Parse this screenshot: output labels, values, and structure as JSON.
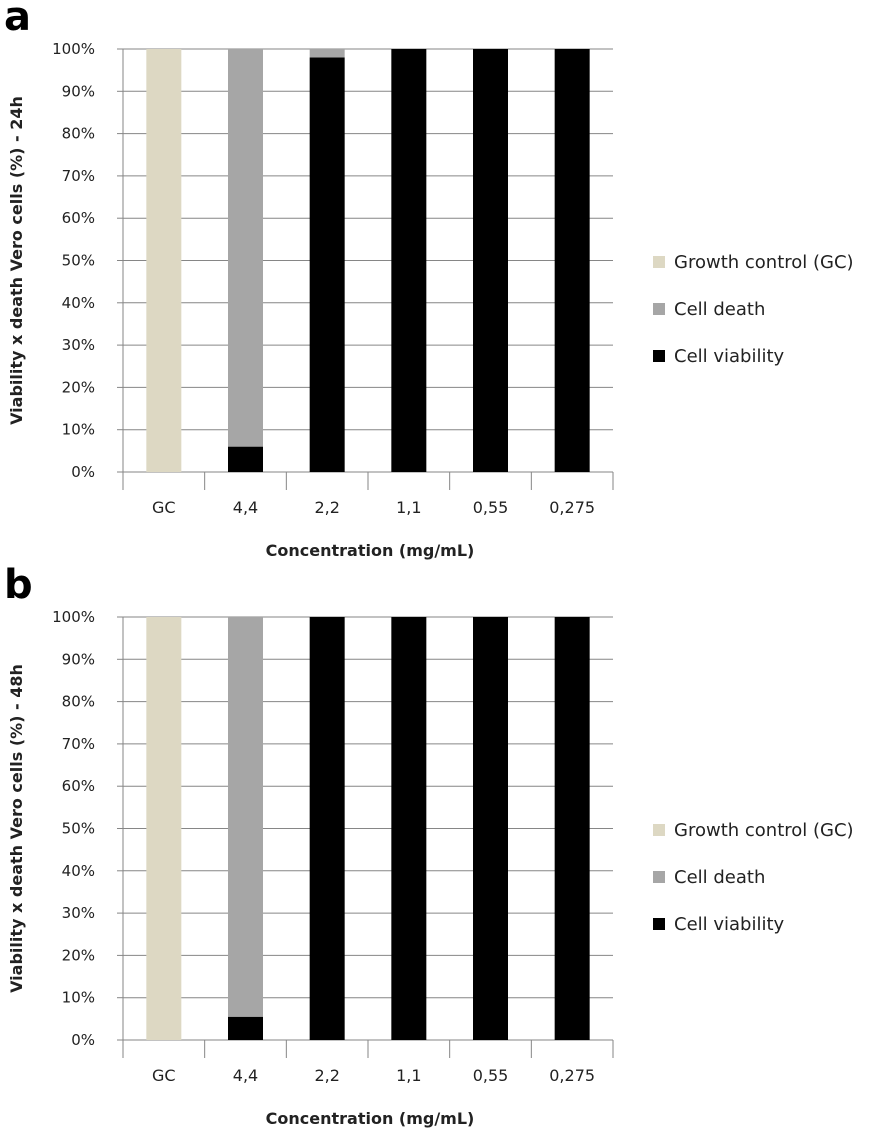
{
  "chart_data": [
    {
      "panel_label": "a",
      "type": "bar",
      "stacked": true,
      "categories": [
        "GC",
        "4,4",
        "2,2",
        "1,1",
        "0,55",
        "0,275"
      ],
      "series": [
        {
          "name": "Growth control (GC)",
          "color": "#ddd8c3",
          "values": [
            100,
            0,
            0,
            0,
            0,
            0
          ]
        },
        {
          "name": "Cell death",
          "color": "#a6a6a6",
          "values": [
            0,
            94,
            2,
            0,
            0,
            0
          ]
        },
        {
          "name": "Cell viability",
          "color": "#000000",
          "values": [
            0,
            6,
            98,
            100,
            100,
            100
          ]
        }
      ],
      "stack_order_bottom_to_top": [
        "Cell viability",
        "Cell death",
        "Growth control (GC)"
      ],
      "xlabel": "Concentration (mg/mL)",
      "ylabel": "Viability x death Vero cells (%) - 24h",
      "ylim": [
        0,
        100
      ],
      "yticks": [
        "0%",
        "10%",
        "20%",
        "30%",
        "40%",
        "50%",
        "60%",
        "70%",
        "80%",
        "90%",
        "100%"
      ],
      "grid": true,
      "legend": "right"
    },
    {
      "panel_label": "b",
      "type": "bar",
      "stacked": true,
      "categories": [
        "GC",
        "4,4",
        "2,2",
        "1,1",
        "0,55",
        "0,275"
      ],
      "series": [
        {
          "name": "Growth control (GC)",
          "color": "#ddd8c3",
          "values": [
            100,
            0,
            0,
            0,
            0,
            0
          ]
        },
        {
          "name": "Cell death",
          "color": "#a6a6a6",
          "values": [
            0,
            94.5,
            0,
            0,
            0,
            0
          ]
        },
        {
          "name": "Cell viability",
          "color": "#000000",
          "values": [
            0,
            5.5,
            100,
            100,
            100,
            100
          ]
        }
      ],
      "stack_order_bottom_to_top": [
        "Cell viability",
        "Cell death",
        "Growth control (GC)"
      ],
      "xlabel": "Concentration (mg/mL)",
      "ylabel": "Viability x death Vero cells (%) - 48h",
      "ylim": [
        0,
        100
      ],
      "yticks": [
        "0%",
        "10%",
        "20%",
        "30%",
        "40%",
        "50%",
        "60%",
        "70%",
        "80%",
        "90%",
        "100%"
      ],
      "grid": true,
      "legend": "right"
    }
  ]
}
